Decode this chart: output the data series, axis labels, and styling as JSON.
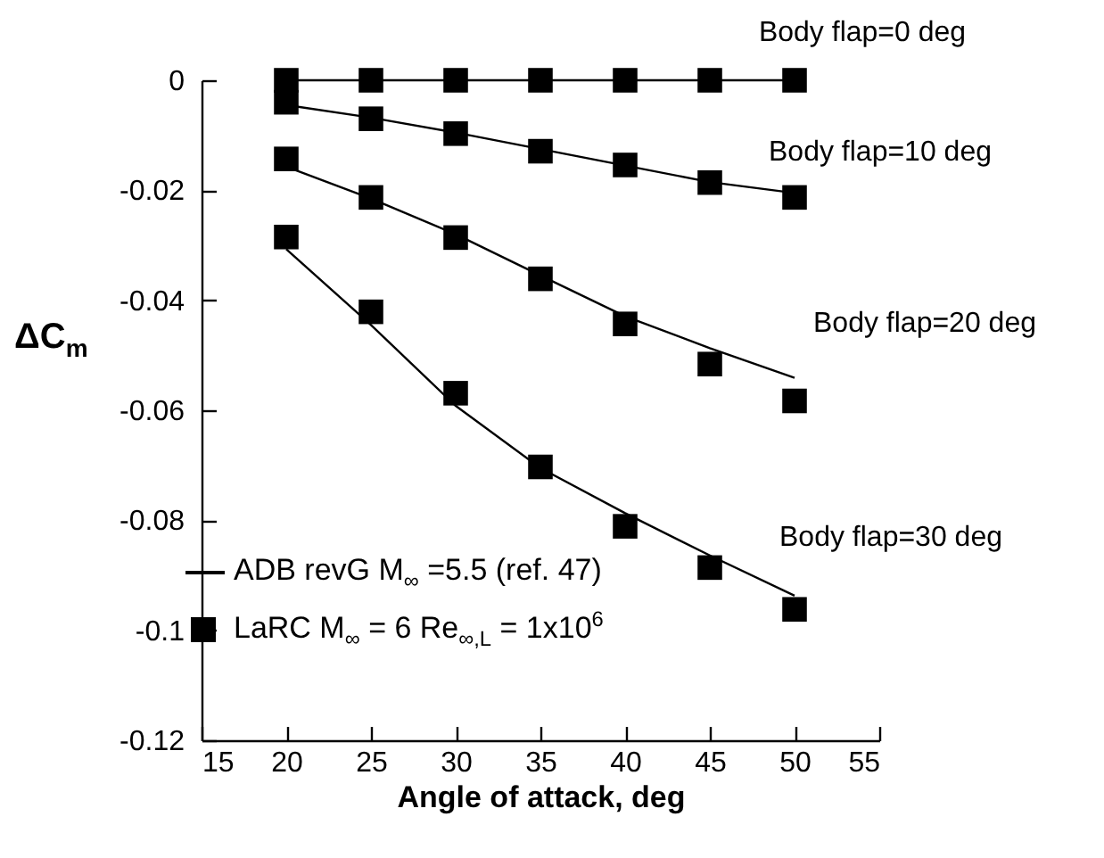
{
  "chart_data": {
    "type": "line",
    "xlabel": "Angle of attack, deg",
    "ylabel": "ΔC$_{m}$",
    "x": [
      20,
      25,
      30,
      35,
      40,
      45,
      50
    ],
    "series": [
      {
        "name": "ADB revG M$_{∞}$ =5.5 (ref. 47)",
        "color": "#000000",
        "values": [
          0,
          0,
          0,
          0,
          0,
          0,
          0
        ]
      },
      {
        "color": "#000000",
        "values": [
          -0.0045,
          -0.0068,
          -0.0095,
          -0.0125,
          -0.0155,
          -0.0185,
          -0.0205
        ]
      },
      {
        "color": "#000000",
        "values": [
          -0.0157,
          -0.0215,
          -0.028,
          -0.0355,
          -0.0429,
          -0.0487,
          -0.0541
        ]
      },
      {
        "color": "#000000",
        "values": [
          -0.0307,
          -0.0445,
          -0.0592,
          -0.0705,
          -0.0787,
          -0.0864,
          -0.0937
        ]
      },
      {
        "name": "LaRC M$_{∞}$ = 6 Re$_{∞,L}$ = 1x10$^{6}$",
        "type": "scatter",
        "marker": "square",
        "color": "#000000",
        "values": [
          0,
          0,
          0,
          0,
          0,
          0,
          0
        ],
        "errors": [
          0.0015,
          0.0015,
          0.0015,
          0.0015,
          0.0015,
          0.0015,
          0.0015
        ]
      },
      {
        "type": "scatter",
        "marker": "square",
        "color": "#000000",
        "values": [
          -0.004,
          -0.007,
          -0.0097,
          -0.0129,
          -0.0154,
          -0.0186,
          -0.0213
        ],
        "errors": [
          0.0015,
          0.0015,
          0.0015,
          0.0015,
          0.0015,
          0.0015,
          0.0015
        ]
      },
      {
        "type": "scatter",
        "marker": "square",
        "color": "#000000",
        "values": [
          -0.0143,
          -0.0213,
          -0.0286,
          -0.0361,
          -0.0443,
          -0.0516,
          -0.0583
        ],
        "errors": [
          0.0015,
          0.0015,
          0.0015,
          0.0015,
          0.0015,
          0.0015,
          0.0015
        ]
      },
      {
        "type": "scatter",
        "marker": "square",
        "color": "#000000",
        "values": [
          -0.0285,
          -0.0421,
          -0.0569,
          -0.0703,
          -0.0811,
          -0.0886,
          -0.0962
        ],
        "errors": [
          0.0015,
          0.0015,
          0.0015,
          0.0015,
          0.0015,
          0.0015,
          0.0015
        ]
      }
    ],
    "xlim": [
      15,
      55
    ],
    "xticks": [
      15,
      20,
      25,
      30,
      35,
      40,
      45,
      50,
      55
    ],
    "ylim": [
      -0.12,
      0.0
    ],
    "yticks": [
      0,
      -0.02,
      -0.04,
      -0.06,
      -0.08,
      -0.1,
      -0.12
    ],
    "grid": false,
    "legend": "bottom left",
    "annotations": [
      "Body flap=0 deg",
      "Body flap=10 deg",
      "Body flap=20 deg",
      "Body flap=30 deg"
    ]
  }
}
